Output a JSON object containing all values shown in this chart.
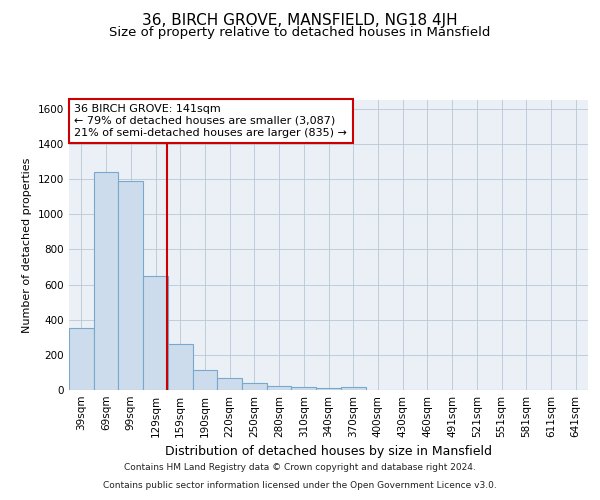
{
  "title": "36, BIRCH GROVE, MANSFIELD, NG18 4JH",
  "subtitle": "Size of property relative to detached houses in Mansfield",
  "xlabel": "Distribution of detached houses by size in Mansfield",
  "ylabel": "Number of detached properties",
  "categories": [
    "39sqm",
    "69sqm",
    "99sqm",
    "129sqm",
    "159sqm",
    "190sqm",
    "220sqm",
    "250sqm",
    "280sqm",
    "310sqm",
    "340sqm",
    "370sqm",
    "400sqm",
    "430sqm",
    "460sqm",
    "491sqm",
    "521sqm",
    "551sqm",
    "581sqm",
    "611sqm",
    "641sqm"
  ],
  "values": [
    350,
    1240,
    1190,
    650,
    260,
    115,
    70,
    38,
    20,
    15,
    10,
    15,
    0,
    0,
    0,
    0,
    0,
    0,
    0,
    0,
    0
  ],
  "bar_color": "#ccdcec",
  "bar_edgecolor": "#7aa8cc",
  "vline_x": 3.47,
  "vline_color": "#cc0000",
  "ylim": [
    0,
    1650
  ],
  "yticks": [
    0,
    200,
    400,
    600,
    800,
    1000,
    1200,
    1400,
    1600
  ],
  "annotation_text": "36 BIRCH GROVE: 141sqm\n← 79% of detached houses are smaller (3,087)\n21% of semi-detached houses are larger (835) →",
  "annotation_box_facecolor": "#ffffff",
  "annotation_box_edgecolor": "#cc0000",
  "footnote_line1": "Contains HM Land Registry data © Crown copyright and database right 2024.",
  "footnote_line2": "Contains public sector information licensed under the Open Government Licence v3.0.",
  "background_color": "#ffffff",
  "plot_bg_color": "#eaf0f6",
  "grid_color": "#b8c8d8",
  "title_fontsize": 11,
  "subtitle_fontsize": 9.5,
  "xlabel_fontsize": 9,
  "ylabel_fontsize": 8,
  "tick_fontsize": 7.5,
  "annotation_fontsize": 8,
  "footnote_fontsize": 6.5
}
